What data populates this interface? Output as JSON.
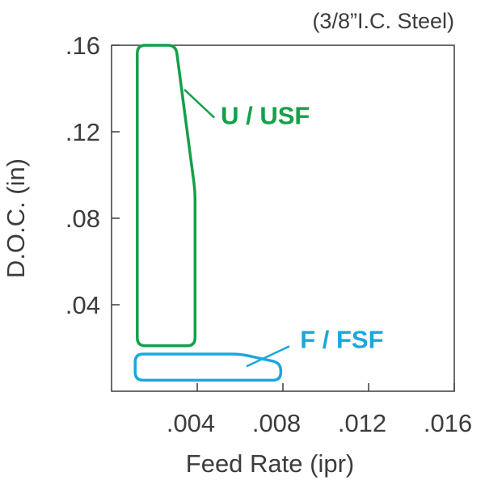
{
  "chart_data": {
    "type": "area",
    "title": "(3/8”I.C. Steel)",
    "xlabel": "Feed Rate (ipr)",
    "ylabel": "D.O.C. (in)",
    "xlim": [
      0,
      0.016
    ],
    "ylim": [
      0,
      0.16
    ],
    "x_ticks": [
      {
        "value": 0.004,
        "label": ".004"
      },
      {
        "value": 0.008,
        "label": ".008"
      },
      {
        "value": 0.012,
        "label": ".012"
      },
      {
        "value": 0.016,
        "label": ".016"
      }
    ],
    "y_ticks": [
      {
        "value": 0.04,
        "label": ".04"
      },
      {
        "value": 0.08,
        "label": ".08"
      },
      {
        "value": 0.12,
        "label": ".12"
      },
      {
        "value": 0.16,
        "label": ".16"
      }
    ],
    "grid": false,
    "series": [
      {
        "name": "U / USF",
        "color": "#13a04a",
        "region": [
          [
            0.0012,
            0.16
          ],
          [
            0.003,
            0.16
          ],
          [
            0.0039,
            0.0925
          ],
          [
            0.0039,
            0.021
          ],
          [
            0.0012,
            0.021
          ]
        ],
        "label_anchor": [
          0.0051,
          0.1235
        ],
        "leader": [
          [
            0.0034,
            0.1395
          ],
          [
            0.0048,
            0.1265
          ]
        ]
      },
      {
        "name": "F / FSF",
        "color": "#1aa7df",
        "region": [
          [
            0.0011,
            0.0172
          ],
          [
            0.006,
            0.0172
          ],
          [
            0.0079,
            0.0131
          ],
          [
            0.0079,
            0.0051
          ],
          [
            0.0011,
            0.0051
          ]
        ],
        "label_anchor": [
          0.0088,
          0.02
        ],
        "leader": [
          [
            0.0063,
            0.0115
          ],
          [
            0.0083,
            0.0208
          ]
        ]
      }
    ]
  }
}
